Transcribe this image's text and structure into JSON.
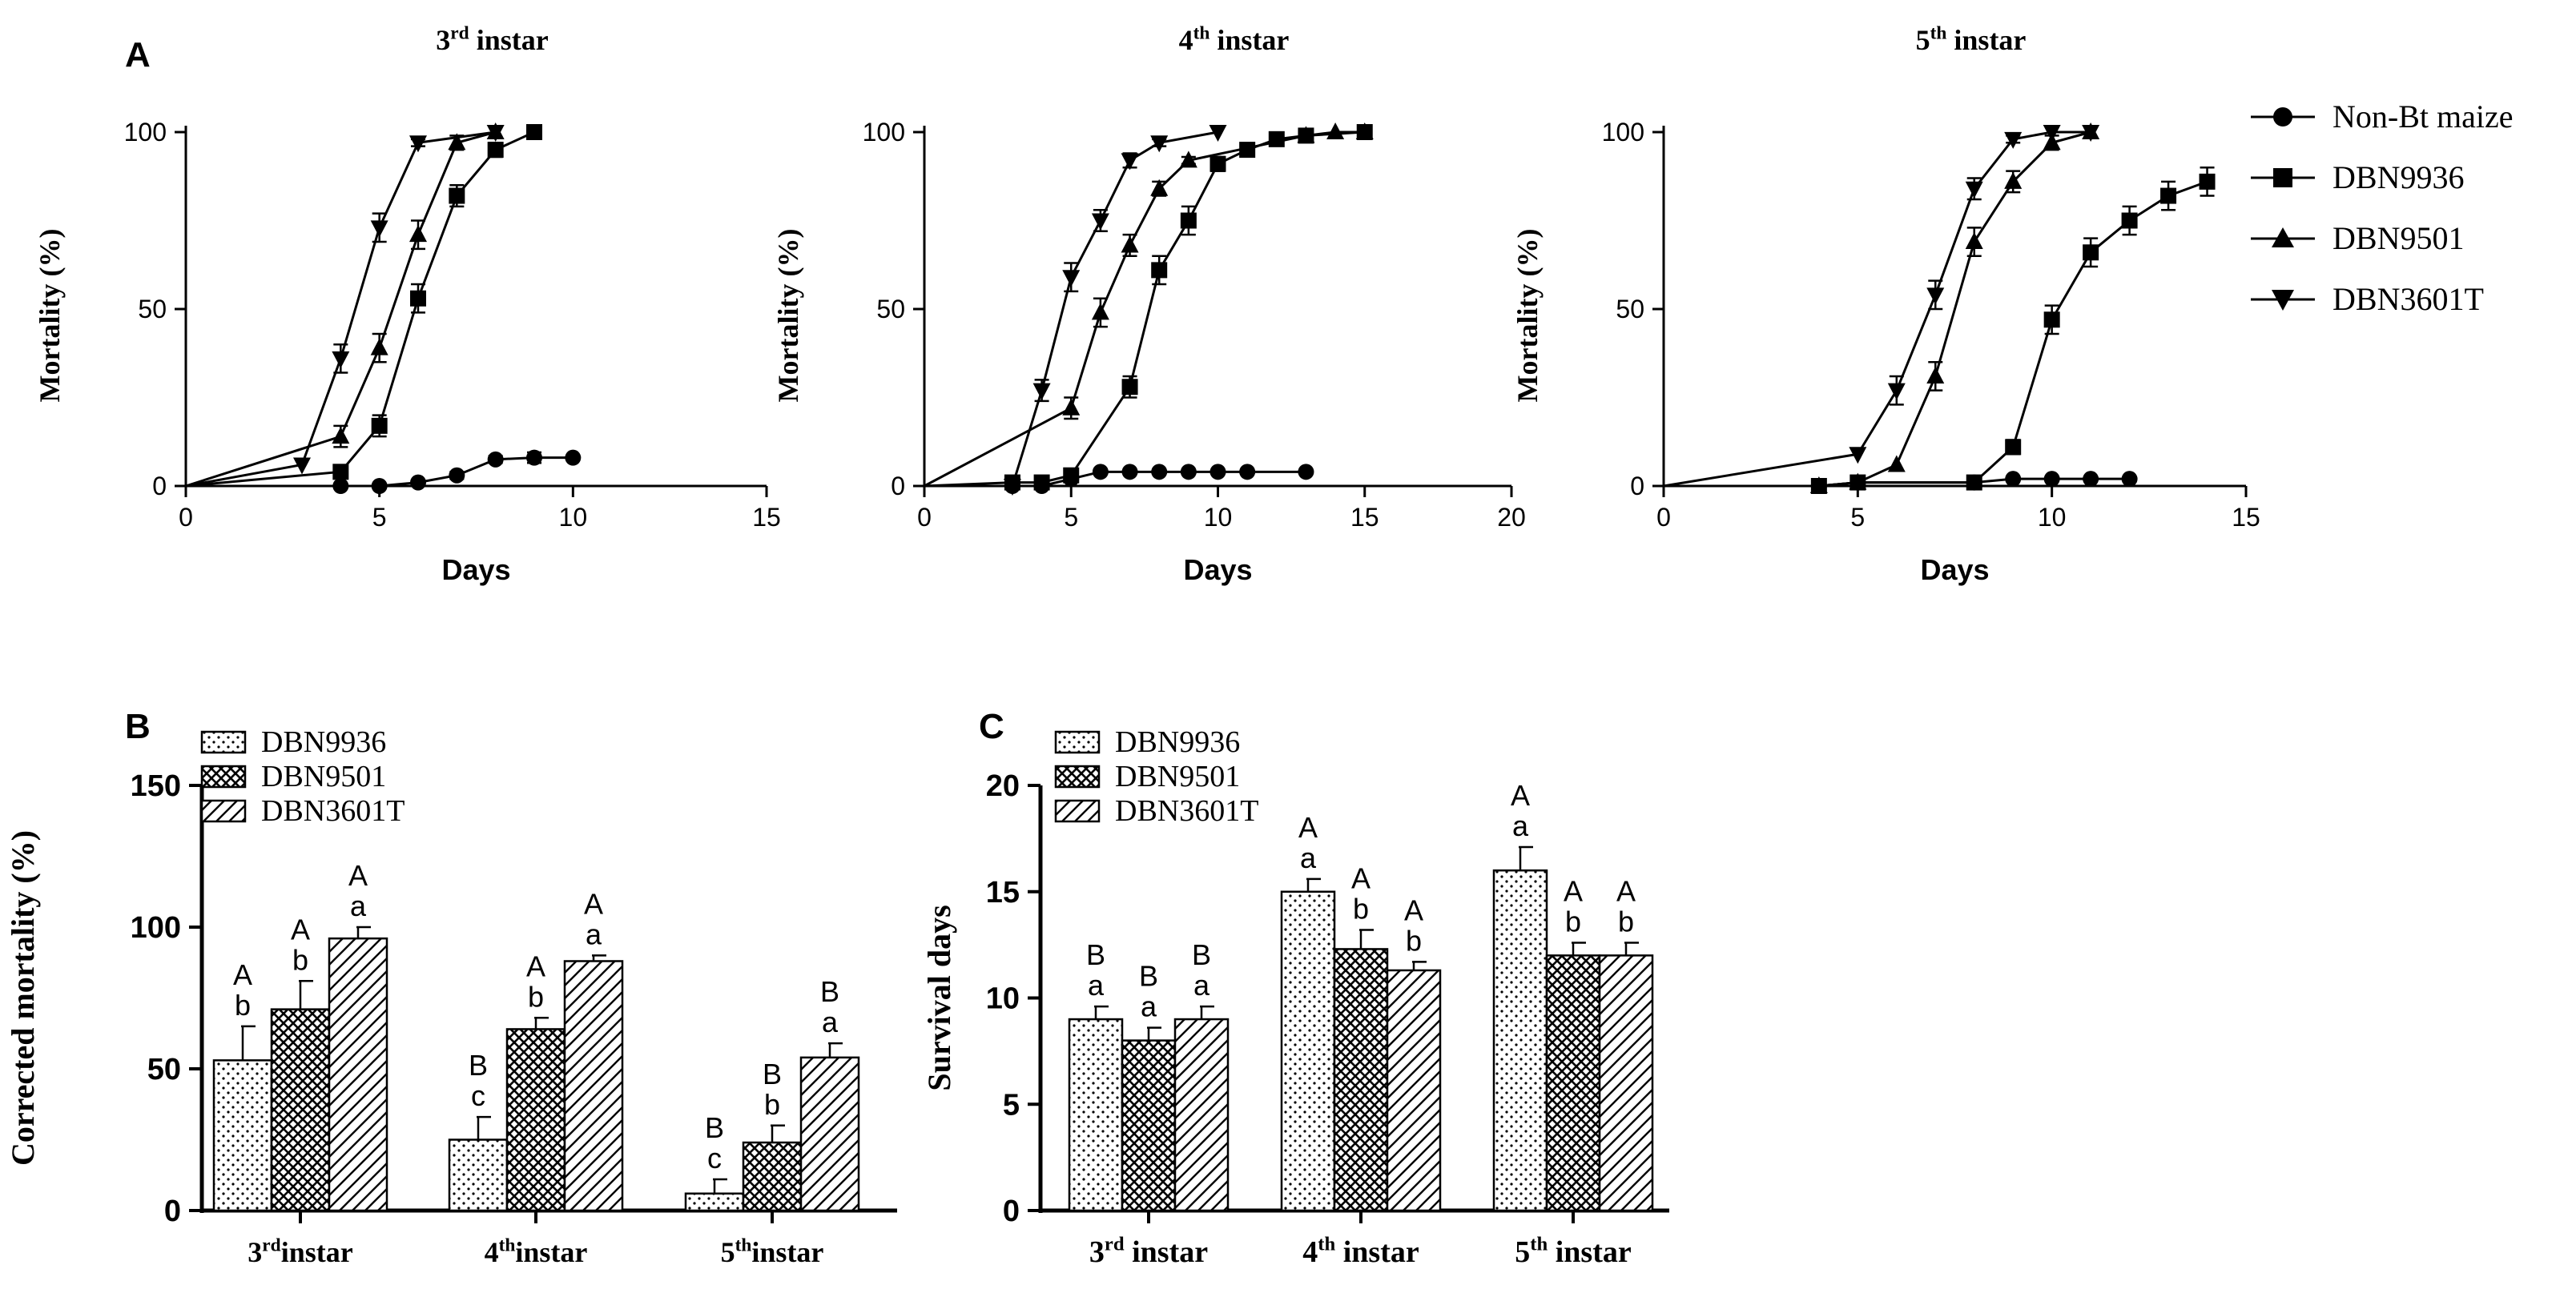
{
  "panel_labels": {
    "A": "A",
    "B": "B",
    "C": "C"
  },
  "legend_a": [
    "Non-Bt maize",
    "DBN9936",
    "DBN9501",
    "DBN3601T"
  ],
  "colors": {
    "ink": "#000000",
    "paper": "#ffffff"
  },
  "chart_data": [
    {
      "id": "A1",
      "type": "line",
      "title": {
        "base": "3",
        "sup": "rd",
        "rest": " instar"
      },
      "xlabel": "Days",
      "ylabel": "Mortality (%)",
      "xlim": [
        0,
        15
      ],
      "ylim": [
        0,
        100
      ],
      "xticks": [
        0,
        5,
        10,
        15
      ],
      "yticks": [
        0,
        50,
        100
      ],
      "series": [
        {
          "name": "Non-Bt maize",
          "marker": "circle",
          "x": [
            0,
            4,
            5,
            6,
            7,
            8,
            9,
            10
          ],
          "y": [
            0,
            0,
            0,
            1,
            3,
            7.5,
            8,
            8
          ],
          "err": [
            0,
            0,
            0,
            0,
            1,
            1,
            1.5,
            0
          ]
        },
        {
          "name": "DBN9936",
          "marker": "square",
          "x": [
            0,
            4,
            5,
            6,
            7,
            8,
            9
          ],
          "y": [
            0,
            4,
            17,
            53,
            82,
            95,
            100
          ],
          "err": [
            0,
            1,
            3,
            4,
            3,
            2,
            0
          ]
        },
        {
          "name": "DBN9501",
          "marker": "triangle-up",
          "x": [
            0,
            4,
            5,
            6,
            7,
            8
          ],
          "y": [
            0,
            14,
            39,
            71,
            97,
            100
          ],
          "err": [
            0,
            3,
            4,
            4,
            2,
            0
          ]
        },
        {
          "name": "DBN3601T",
          "marker": "triangle-down",
          "x": [
            0,
            3,
            4,
            5,
            6,
            8
          ],
          "y": [
            0,
            6,
            36,
            73,
            97,
            100
          ],
          "err": [
            0,
            0,
            4,
            4,
            1,
            0
          ]
        }
      ]
    },
    {
      "id": "A2",
      "type": "line",
      "title": {
        "base": "4",
        "sup": "th",
        "rest": " instar"
      },
      "xlabel": "Days",
      "ylabel": "Mortality (%)",
      "xlim": [
        0,
        20
      ],
      "ylim": [
        0,
        100
      ],
      "xticks": [
        0,
        5,
        10,
        15,
        20
      ],
      "yticks": [
        0,
        50,
        100
      ],
      "series": [
        {
          "name": "Non-Bt maize",
          "marker": "circle",
          "x": [
            0,
            3,
            4,
            5,
            6,
            7,
            8,
            9,
            10,
            11,
            13
          ],
          "y": [
            0,
            0,
            0,
            2,
            4,
            4,
            4,
            4,
            4,
            4,
            4
          ],
          "err": [
            0,
            0,
            0,
            0,
            0,
            0,
            0,
            0,
            0,
            0,
            0
          ]
        },
        {
          "name": "DBN9936",
          "marker": "square",
          "x": [
            0,
            3,
            4,
            5,
            7,
            8,
            9,
            10,
            11,
            12,
            13,
            15
          ],
          "y": [
            0,
            1,
            1,
            3,
            28,
            61,
            75,
            91,
            95,
            98,
            99,
            100
          ],
          "err": [
            0,
            0,
            0,
            0,
            3,
            4,
            4,
            2,
            1,
            1,
            1,
            0
          ]
        },
        {
          "name": "DBN9501",
          "marker": "triangle-up",
          "x": [
            0,
            5,
            6,
            7,
            8,
            9,
            13,
            14,
            15
          ],
          "y": [
            0,
            22,
            49,
            68,
            84,
            92,
            99,
            100,
            100
          ],
          "err": [
            0,
            3,
            4,
            3,
            2,
            1,
            0,
            0,
            0
          ]
        },
        {
          "name": "DBN3601T",
          "marker": "triangle-down",
          "x": [
            3,
            4,
            5,
            6,
            7,
            8,
            10
          ],
          "y": [
            0,
            27,
            59,
            75,
            92,
            97,
            100
          ],
          "err": [
            0,
            3,
            4,
            3,
            2,
            1,
            0
          ]
        }
      ]
    },
    {
      "id": "A3",
      "type": "line",
      "title": {
        "base": "5",
        "sup": "th",
        "rest": " instar"
      },
      "xlabel": "Days",
      "ylabel": "Mortality (%)",
      "xlim": [
        0,
        15
      ],
      "ylim": [
        0,
        100
      ],
      "xticks": [
        0,
        5,
        10,
        15
      ],
      "yticks": [
        0,
        50,
        100
      ],
      "series": [
        {
          "name": "Non-Bt maize",
          "marker": "circle",
          "x": [
            0,
            4,
            5,
            8,
            9,
            10,
            11,
            12
          ],
          "y": [
            0,
            0,
            1,
            1,
            2,
            2,
            2,
            2
          ],
          "err": [
            0,
            0,
            0,
            0,
            0,
            0,
            0,
            0
          ]
        },
        {
          "name": "DBN9936",
          "marker": "square",
          "x": [
            0,
            4,
            5,
            8,
            9,
            10,
            11,
            12,
            13,
            14
          ],
          "y": [
            0,
            0,
            1,
            1,
            11,
            47,
            66,
            75,
            82,
            86
          ],
          "err": [
            0,
            0,
            0,
            0,
            2,
            4,
            4,
            4,
            4,
            4
          ]
        },
        {
          "name": "DBN9501",
          "marker": "triangle-up",
          "x": [
            0,
            4,
            5,
            6,
            7,
            8,
            9,
            10,
            11
          ],
          "y": [
            0,
            0,
            1,
            6,
            31,
            69,
            86,
            97,
            100
          ],
          "err": [
            0,
            0,
            0,
            0,
            4,
            4,
            3,
            2,
            0
          ]
        },
        {
          "name": "DBN3601T",
          "marker": "triangle-down",
          "x": [
            0,
            5,
            6,
            7,
            8,
            9,
            10,
            11
          ],
          "y": [
            0,
            9,
            27,
            54,
            84,
            98,
            100,
            100
          ],
          "err": [
            0,
            0,
            4,
            4,
            3,
            1,
            0,
            0
          ]
        }
      ]
    },
    {
      "id": "B",
      "type": "bar",
      "ylabel": "Corrected mortality (%)",
      "ylim": [
        0,
        150
      ],
      "yticks": [
        0,
        50,
        100,
        150
      ],
      "legend": [
        "DBN9936",
        "DBN9501",
        "DBN3601T"
      ],
      "categories": [
        {
          "base": "3",
          "sup": "rd",
          "rest": "instar"
        },
        {
          "base": "4",
          "sup": "th",
          "rest": "instar"
        },
        {
          "base": "5",
          "sup": "th",
          "rest": "instar"
        }
      ],
      "series": [
        {
          "name": "DBN9936",
          "pattern": "dots",
          "values": [
            53,
            25,
            6
          ],
          "err": [
            12,
            8,
            5
          ],
          "upper": [
            "A",
            "B",
            "B"
          ],
          "lower": [
            "b",
            "c",
            "c"
          ]
        },
        {
          "name": "DBN9501",
          "pattern": "cross",
          "values": [
            71,
            64,
            24
          ],
          "err": [
            10,
            4,
            6
          ],
          "upper": [
            "A",
            "A",
            "B"
          ],
          "lower": [
            "b",
            "b",
            "b"
          ]
        },
        {
          "name": "DBN3601T",
          "pattern": "hatch",
          "values": [
            96,
            88,
            54
          ],
          "err": [
            4,
            2,
            5
          ],
          "upper": [
            "A",
            "A",
            "B"
          ],
          "lower": [
            "a",
            "a",
            "a"
          ]
        }
      ]
    },
    {
      "id": "C",
      "type": "bar",
      "ylabel": "Survival days",
      "ylim": [
        0,
        20
      ],
      "yticks": [
        0,
        5,
        10,
        15,
        20
      ],
      "legend": [
        "DBN9936",
        "DBN9501",
        "DBN3601T"
      ],
      "categories": [
        {
          "base": "3",
          "sup": "rd",
          "rest": " instar"
        },
        {
          "base": "4",
          "sup": "th",
          "rest": " instar"
        },
        {
          "base": "5",
          "sup": "th",
          "rest": " instar"
        }
      ],
      "series": [
        {
          "name": "DBN9936",
          "pattern": "dots",
          "values": [
            9,
            15,
            16
          ],
          "err": [
            0.6,
            0.6,
            1.1
          ],
          "upper": [
            "B",
            "A",
            "A"
          ],
          "lower": [
            "a",
            "a",
            "a"
          ]
        },
        {
          "name": "DBN9501",
          "pattern": "cross",
          "values": [
            8,
            12.3,
            12
          ],
          "err": [
            0.6,
            0.9,
            0.6
          ],
          "upper": [
            "B",
            "A",
            "A"
          ],
          "lower": [
            "a",
            "b",
            "b"
          ]
        },
        {
          "name": "DBN3601T",
          "pattern": "hatch",
          "values": [
            9,
            11.3,
            12
          ],
          "err": [
            0.6,
            0.4,
            0.6
          ],
          "upper": [
            "B",
            "A",
            "A"
          ],
          "lower": [
            "a",
            "b",
            "b"
          ]
        }
      ]
    }
  ]
}
